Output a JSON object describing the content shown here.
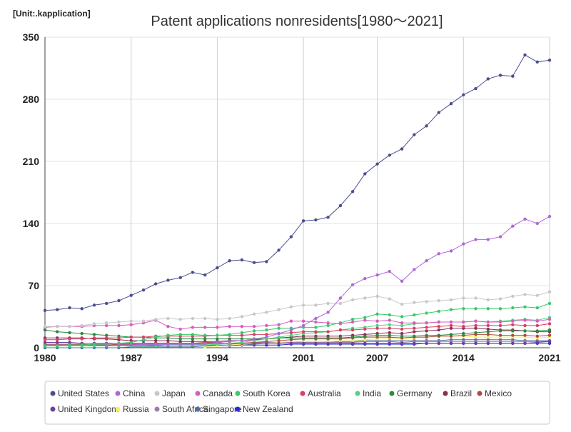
{
  "chart_data": {
    "type": "line",
    "title": "Patent applications nonresidents[1980～2021]",
    "unit_label": "[Unit:.kapplication]",
    "xlabel": "",
    "ylabel": "",
    "xlim": [
      1980,
      2021
    ],
    "ylim": [
      0,
      350
    ],
    "y_ticks": [
      0,
      70,
      140,
      210,
      280,
      350
    ],
    "x_ticks": [
      1980,
      1987,
      1994,
      2001,
      2007,
      2014,
      2021
    ],
    "grid": true,
    "legend_position": "bottom",
    "x": [
      1980,
      1981,
      1982,
      1983,
      1984,
      1985,
      1986,
      1987,
      1988,
      1989,
      1990,
      1991,
      1992,
      1993,
      1994,
      1995,
      1996,
      1997,
      1998,
      1999,
      2000,
      2001,
      2002,
      2003,
      2004,
      2005,
      2006,
      2007,
      2008,
      2009,
      2010,
      2011,
      2012,
      2013,
      2014,
      2015,
      2016,
      2017,
      2018,
      2019,
      2020,
      2021
    ],
    "series": [
      {
        "name": "United States",
        "color": "#4a4e8f",
        "values": [
          42,
          43,
          45,
          44,
          48,
          50,
          53,
          59,
          65,
          72,
          76,
          79,
          85,
          82,
          90,
          98,
          99,
          96,
          97,
          110,
          125,
          143,
          144,
          147,
          160,
          176,
          196,
          207,
          217,
          224,
          240,
          250,
          265,
          275,
          285,
          292,
          303,
          307,
          306,
          330,
          322,
          324
        ]
      },
      {
        "name": "China",
        "color": "#b067d8",
        "values": [
          null,
          null,
          null,
          null,
          null,
          2,
          3,
          3,
          4,
          4,
          4,
          4,
          4,
          5,
          6,
          7,
          8,
          10,
          12,
          16,
          20,
          25,
          33,
          40,
          56,
          71,
          78,
          82,
          86,
          75,
          88,
          98,
          106,
          109,
          117,
          122,
          122,
          125,
          137,
          145,
          140,
          148
        ]
      },
      {
        "name": "Japan",
        "color": "#c8c8c8",
        "values": [
          24,
          24,
          24,
          25,
          27,
          28,
          29,
          30,
          30,
          32,
          33,
          32,
          33,
          33,
          32,
          33,
          35,
          38,
          40,
          43,
          46,
          48,
          48,
          50,
          50,
          54,
          56,
          58,
          55,
          49,
          51,
          52,
          53,
          54,
          56,
          56,
          54,
          55,
          58,
          60,
          59,
          63
        ]
      },
      {
        "name": "Canada",
        "color": "#d75cc0",
        "values": [
          23,
          24,
          24,
          24,
          25,
          25,
          25,
          26,
          28,
          31,
          24,
          21,
          23,
          23,
          23,
          24,
          24,
          24,
          25,
          26,
          30,
          30,
          29,
          28,
          27,
          29,
          31,
          30,
          31,
          28,
          28,
          28,
          29,
          29,
          29,
          30,
          29,
          29,
          30,
          31,
          30,
          32
        ]
      },
      {
        "name": "South Korea",
        "color": "#39c96a",
        "values": [
          2,
          2,
          3,
          3,
          4,
          4,
          5,
          6,
          9,
          12,
          14,
          15,
          15,
          14,
          14,
          15,
          17,
          19,
          20,
          22,
          22,
          23,
          23,
          25,
          28,
          32,
          34,
          38,
          37,
          35,
          37,
          39,
          41,
          43,
          44,
          44,
          44,
          44,
          45,
          46,
          45,
          50
        ]
      },
      {
        "name": "Australia",
        "color": "#d84064",
        "values": [
          9,
          9,
          10,
          10,
          11,
          11,
          11,
          12,
          12,
          13,
          13,
          13,
          13,
          13,
          14,
          14,
          14,
          15,
          15,
          16,
          17,
          18,
          18,
          18,
          20,
          20,
          21,
          22,
          22,
          21,
          22,
          23,
          24,
          25,
          24,
          25,
          25,
          25,
          26,
          25,
          25,
          27
        ]
      },
      {
        "name": "India",
        "color": "#4ed67f",
        "values": [
          2,
          2,
          2,
          2,
          2,
          2,
          2,
          2,
          2,
          2,
          3,
          3,
          3,
          3,
          4,
          5,
          6,
          8,
          10,
          12,
          14,
          16,
          17,
          18,
          20,
          22,
          23,
          25,
          26,
          25,
          27,
          28,
          29,
          29,
          29,
          30,
          29,
          30,
          31,
          32,
          31,
          34
        ]
      },
      {
        "name": "Germany",
        "color": "#2a8a3e",
        "values": [
          20,
          18,
          17,
          16,
          15,
          14,
          13,
          12,
          12,
          11,
          11,
          10,
          10,
          10,
          10,
          10,
          10,
          10,
          10,
          11,
          11,
          11,
          11,
          11,
          11,
          12,
          13,
          14,
          14,
          13,
          13,
          14,
          14,
          15,
          16,
          17,
          18,
          19,
          19,
          19,
          19,
          20
        ]
      },
      {
        "name": "Brazil",
        "color": "#8b2f5a",
        "values": [
          11,
          11,
          11,
          11,
          10,
          10,
          9,
          8,
          8,
          8,
          8,
          7,
          7,
          7,
          7,
          8,
          8,
          9,
          10,
          11,
          12,
          13,
          13,
          13,
          13,
          14,
          15,
          16,
          17,
          16,
          18,
          19,
          20,
          22,
          22,
          22,
          21,
          20,
          20,
          19,
          18,
          18
        ]
      },
      {
        "name": "Mexico",
        "color": "#b04a3e",
        "values": [
          4,
          4,
          4,
          4,
          3,
          3,
          4,
          4,
          4,
          5,
          5,
          5,
          5,
          6,
          6,
          4,
          5,
          6,
          7,
          8,
          9,
          10,
          10,
          10,
          10,
          11,
          12,
          12,
          12,
          11,
          12,
          12,
          13,
          13,
          14,
          15,
          15,
          14,
          14,
          14,
          13,
          14
        ]
      },
      {
        "name": "United Kingdom",
        "color": "#6a3fa0",
        "values": [
          6,
          6,
          6,
          5,
          5,
          5,
          5,
          5,
          5,
          5,
          5,
          5,
          5,
          5,
          5,
          5,
          5,
          5,
          5,
          5,
          5,
          5,
          5,
          5,
          5,
          5,
          5,
          5,
          5,
          5,
          5,
          5,
          5,
          5,
          5,
          5,
          5,
          5,
          5,
          5,
          6,
          7
        ]
      },
      {
        "name": "Russia",
        "color": "#f4ef6a",
        "values": [
          null,
          null,
          null,
          null,
          null,
          null,
          null,
          null,
          null,
          null,
          null,
          null,
          null,
          1,
          2,
          3,
          4,
          5,
          5,
          6,
          7,
          7,
          7,
          7,
          8,
          8,
          9,
          10,
          11,
          10,
          11,
          12,
          13,
          13,
          13,
          12,
          12,
          12,
          12,
          12,
          11,
          12
        ]
      },
      {
        "name": "South Africa",
        "color": "#9c7ca8",
        "values": [
          3,
          3,
          3,
          3,
          3,
          3,
          3,
          3,
          3,
          4,
          4,
          4,
          4,
          4,
          5,
          5,
          5,
          6,
          6,
          6,
          6,
          6,
          6,
          6,
          6,
          6,
          7,
          7,
          7,
          6,
          7,
          7,
          7,
          7,
          7,
          7,
          7,
          7,
          7,
          7,
          7,
          7
        ]
      },
      {
        "name": "Singapore",
        "color": "#4e6fa6",
        "values": [
          0,
          0,
          0,
          0,
          0,
          0,
          0,
          1,
          1,
          1,
          1,
          1,
          1,
          2,
          2,
          2,
          3,
          4,
          5,
          6,
          6,
          7,
          7,
          7,
          7,
          7,
          8,
          8,
          8,
          8,
          8,
          8,
          8,
          9,
          9,
          9,
          9,
          9,
          9,
          8,
          8,
          8
        ]
      },
      {
        "name": "New Zealand",
        "color": "#2b2bd6",
        "values": [
          3,
          3,
          3,
          3,
          3,
          3,
          3,
          3,
          3,
          3,
          3,
          3,
          3,
          3,
          3,
          3,
          3,
          3,
          3,
          3,
          4,
          4,
          4,
          4,
          4,
          4,
          4,
          4,
          4,
          4,
          4,
          5,
          5,
          5,
          5,
          5,
          5,
          5,
          5,
          5,
          5,
          5
        ]
      }
    ]
  }
}
